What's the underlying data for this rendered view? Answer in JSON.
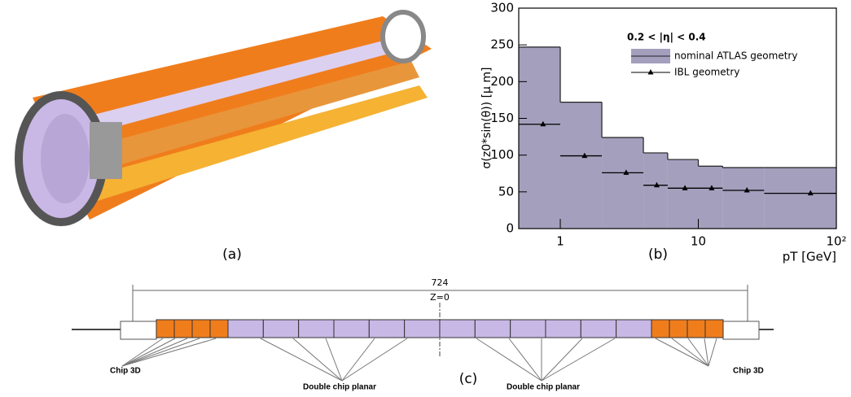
{
  "figure": {
    "panel_labels": [
      "(a)",
      "(b)",
      "(c)"
    ]
  },
  "diagram": {
    "dimension": "724",
    "z_label": "Z=0",
    "left_label": "Chip 3D",
    "planar_labels": [
      "Double chip planar",
      "Double chip planar"
    ],
    "right_label": "Chip 3D"
  },
  "chart_data": {
    "type": "histogram",
    "annotation": "0.2 < |η| < 0.4",
    "xlabel": "pT [GeV]",
    "ylabel": "σ(z0*sin(θ))  [μ m]",
    "bins": [
      0.5,
      1,
      2,
      4,
      6,
      10,
      15,
      30,
      100
    ],
    "series": [
      {
        "name": "nominal ATLAS geometry",
        "color": "#a39fbd",
        "values": [
          247,
          172,
          124,
          103,
          94,
          85,
          83,
          83
        ]
      },
      {
        "name": "IBL geometry",
        "color": "#000000",
        "x": [
          0.75,
          1.5,
          3,
          5,
          8,
          12.5,
          22.5,
          65
        ],
        "values": [
          142,
          99,
          76,
          59,
          55,
          55,
          52,
          48
        ]
      }
    ],
    "xscale": "log",
    "xlim": [
      0.5,
      100
    ],
    "xticks": [
      1,
      10,
      {
        "value": 100,
        "label": "10²"
      }
    ],
    "ylim": [
      0,
      300
    ],
    "yticks": [
      0,
      50,
      100,
      150,
      200,
      250,
      300
    ],
    "legend": "upper right"
  }
}
